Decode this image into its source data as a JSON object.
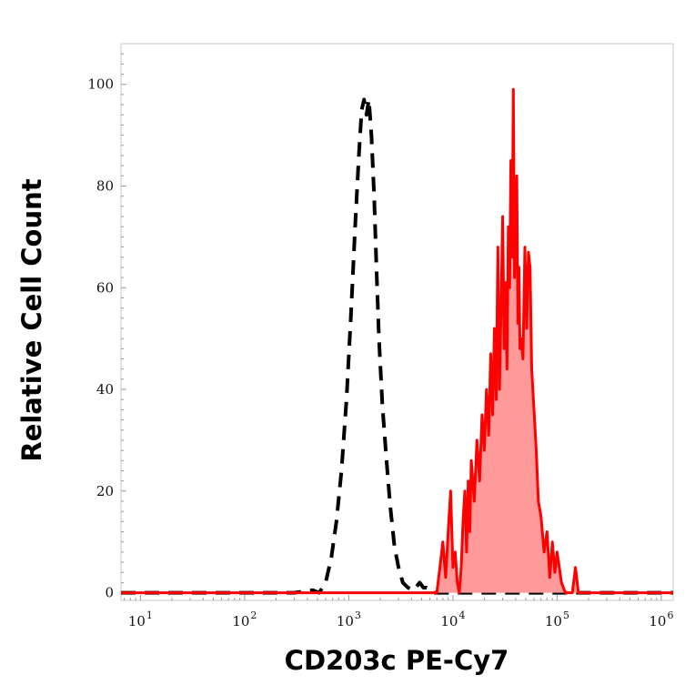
{
  "chart_data": {
    "type": "area",
    "xlabel": "CD203c PE-Cy7",
    "ylabel": "Relative Cell Count",
    "x_scale": "log",
    "xlim": [
      6.5,
      1300000
    ],
    "ylim": [
      -1.5,
      108
    ],
    "y_ticks": [
      0,
      20,
      40,
      60,
      80,
      100
    ],
    "y_tick_labels": [
      "0",
      "20",
      "40",
      "60",
      "80",
      "100"
    ],
    "x_ticks": [
      {
        "base": "10",
        "exp": "1",
        "value": 10
      },
      {
        "base": "10",
        "exp": "2",
        "value": 100
      },
      {
        "base": "10",
        "exp": "3",
        "value": 1000
      },
      {
        "base": "10",
        "exp": "4",
        "value": 10000
      },
      {
        "base": "10",
        "exp": "5",
        "value": 100000
      },
      {
        "base": "10",
        "exp": "6",
        "value": 1000000
      }
    ],
    "grid": false,
    "legend": "none",
    "series": [
      {
        "style": "dashed",
        "color": "#000000",
        "filled": false,
        "x": [
          6.5,
          30,
          100,
          300,
          450,
          520,
          600,
          680,
          760,
          850,
          950,
          1050,
          1150,
          1250,
          1330,
          1400,
          1480,
          1560,
          1650,
          1750,
          1850,
          1950,
          2100,
          2300,
          2500,
          2750,
          3000,
          3300,
          3700,
          4200,
          4800,
          5200,
          5600,
          6500,
          8000,
          20000,
          100000,
          1300000
        ],
        "y": [
          0,
          0,
          0,
          0,
          0.5,
          0,
          2,
          7,
          14,
          24,
          38,
          55,
          72,
          86,
          95,
          97,
          94,
          97,
          90,
          78,
          63,
          50,
          37,
          26,
          17,
          9,
          5,
          2,
          1,
          0.5,
          2,
          1,
          1,
          0,
          0,
          0,
          0,
          0
        ]
      },
      {
        "style": "solid",
        "color": "#ff0000",
        "filled": true,
        "fill": "#ff9a9a",
        "x": [
          6.5,
          100,
          1000,
          5000,
          7000,
          7500,
          8000,
          8500,
          9000,
          9500,
          10000,
          10500,
          11000,
          11500,
          12000,
          12500,
          13000,
          13500,
          14000,
          14500,
          15000,
          16000,
          17000,
          18000,
          19000,
          20000,
          21000,
          22000,
          23000,
          24000,
          25000,
          26000,
          27000,
          28000,
          29000,
          30000,
          31000,
          32000,
          33000,
          34000,
          35000,
          36000,
          37000,
          38000,
          39000,
          40000,
          41000,
          42000,
          43000,
          44000,
          45000,
          47000,
          49000,
          51000,
          53000,
          55000,
          57000,
          60000,
          63000,
          66000,
          70000,
          75000,
          80000,
          85000,
          90000,
          95000,
          100000,
          110000,
          120000,
          130000,
          140000,
          150000,
          160000,
          200000,
          1300000
        ],
        "y": [
          0,
          0,
          0,
          0,
          0,
          5,
          10,
          3,
          12,
          20,
          5,
          8,
          2,
          0,
          5,
          14,
          20,
          8,
          22,
          12,
          26,
          18,
          30,
          22,
          35,
          28,
          40,
          31,
          47,
          35,
          52,
          38,
          68,
          40,
          57,
          74,
          48,
          61,
          44,
          72,
          60,
          85,
          66,
          99,
          62,
          75,
          82,
          53,
          64,
          48,
          50,
          46,
          68,
          52,
          67,
          64,
          44,
          36,
          28,
          18,
          15,
          8,
          12,
          3,
          10,
          4,
          8,
          2,
          0,
          0,
          0,
          5,
          0,
          0,
          0
        ]
      }
    ]
  }
}
